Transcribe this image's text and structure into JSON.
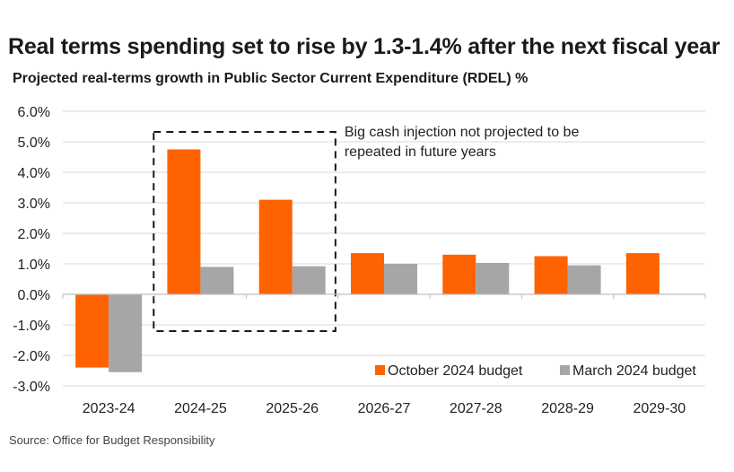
{
  "chart_data": {
    "type": "bar",
    "title": "Real terms spending set to rise by 1.3-1.4% after the next fiscal year",
    "subtitle": "Projected real-terms growth in Public Sector Current Expenditure (RDEL) %",
    "categories": [
      "2023-24",
      "2024-25",
      "2025-26",
      "2026-27",
      "2027-28",
      "2028-29",
      "2029-30"
    ],
    "series": [
      {
        "name": "October 2024 budget",
        "color": "#ff6200",
        "values": [
          -2.4,
          4.75,
          3.1,
          1.35,
          1.3,
          1.25,
          1.35
        ]
      },
      {
        "name": "March 2024 budget",
        "color": "#a6a6a6",
        "values": [
          -2.55,
          0.9,
          0.92,
          1.0,
          1.03,
          0.95,
          null
        ]
      }
    ],
    "ylim": [
      -3.0,
      6.0
    ],
    "yticks": [
      6.0,
      5.0,
      4.0,
      3.0,
      2.0,
      1.0,
      0.0,
      -1.0,
      -2.0,
      -3.0
    ],
    "ytick_labels": [
      "6.0%",
      "5.0%",
      "4.0%",
      "3.0%",
      "2.0%",
      "1.0%",
      "0.0%",
      "-1.0%",
      "-2.0%",
      "-3.0%"
    ],
    "xlabel": "",
    "ylabel": "",
    "grid": true,
    "legend_position": "bottom-right",
    "annotation": {
      "lines": [
        "Big cash injection not projected to be",
        "repeated in future years"
      ],
      "highlight_categories": [
        "2024-25",
        "2025-26"
      ]
    },
    "source": "Source: Office for Budget Responsibility"
  }
}
